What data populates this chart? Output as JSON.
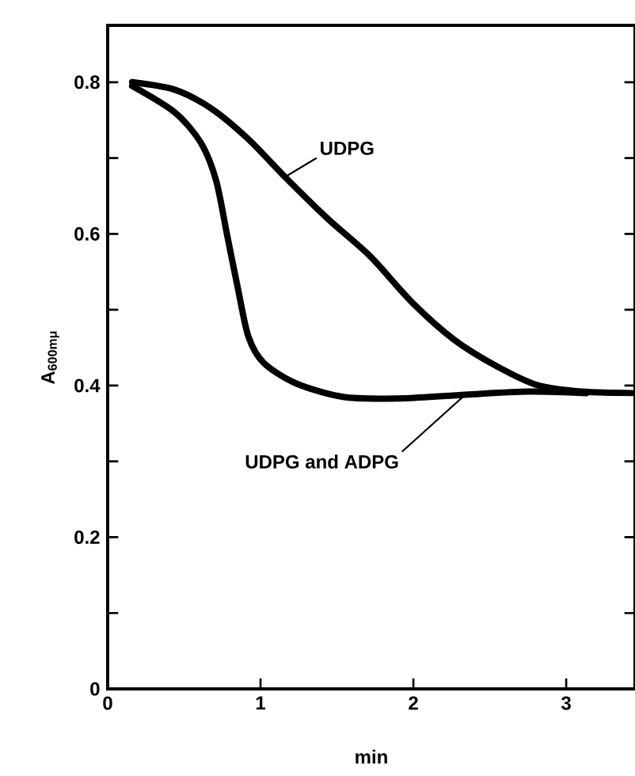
{
  "chart_data": {
    "type": "line",
    "xlabel": "min",
    "ylabel": "A$_{600mμ}$",
    "xlim": [
      0,
      3.45
    ],
    "ylim": [
      0,
      0.875
    ],
    "xticks": [
      0,
      1,
      2,
      3
    ],
    "yticks": [
      0,
      {
        "value": 0.1,
        "label": null
      },
      0.2,
      {
        "value": 0.3,
        "label": null
      },
      0.4,
      {
        "value": 0.5,
        "label": null
      },
      0.6,
      {
        "value": 0.7,
        "label": null
      },
      0.8
    ],
    "series": [
      {
        "name": "UDPG",
        "color": "#000000",
        "x": [
          0.16,
          0.44,
          0.68,
          0.92,
          1.16,
          1.44,
          1.72,
          1.99,
          2.27,
          2.55,
          2.82,
          3.1,
          3.43
        ],
        "values": [
          0.8,
          0.79,
          0.765,
          0.725,
          0.675,
          0.62,
          0.57,
          0.51,
          0.46,
          0.425,
          0.4,
          0.392,
          0.39
        ]
      },
      {
        "name": "UDPG and ADPG",
        "color": "#000000",
        "x": [
          0.16,
          0.44,
          0.61,
          0.71,
          0.78,
          0.85,
          0.92,
          1.02,
          1.23,
          1.54,
          1.89,
          2.34,
          2.75,
          3.13
        ],
        "values": [
          0.795,
          0.76,
          0.72,
          0.67,
          0.6,
          0.53,
          0.465,
          0.43,
          0.403,
          0.385,
          0.383,
          0.388,
          0.392,
          0.39
        ]
      }
    ]
  }
}
